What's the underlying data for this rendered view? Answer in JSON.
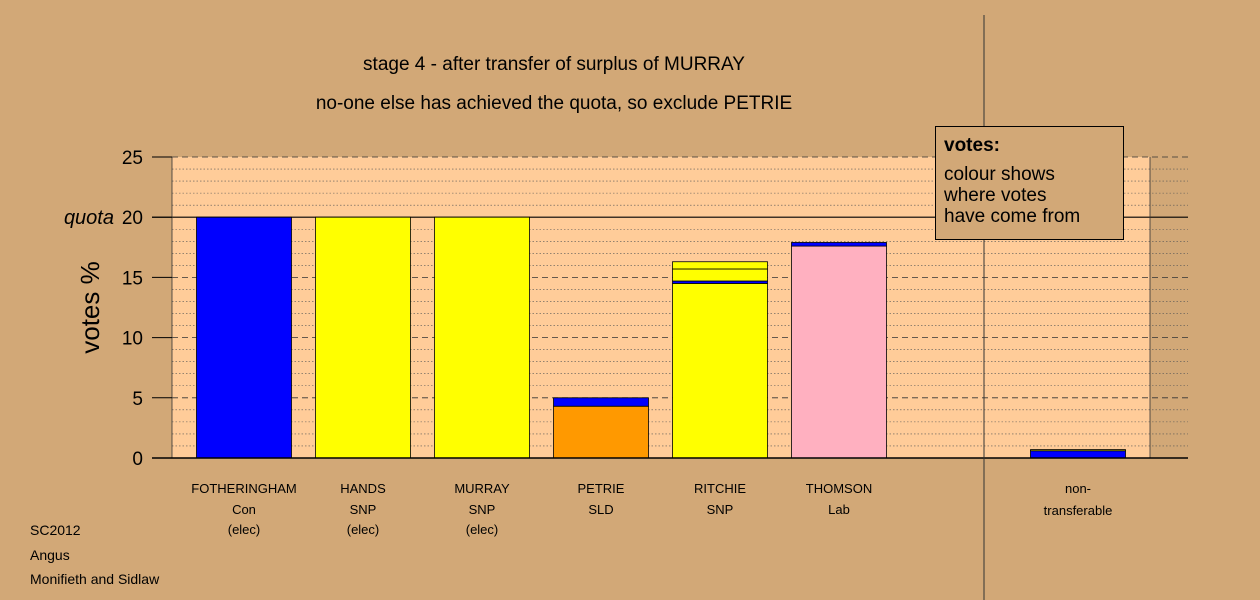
{
  "titles": {
    "line1": "stage 4 - after transfer of surplus of MURRAY",
    "line2": "no-one else has achieved the quota, so exclude PETRIE"
  },
  "legend": {
    "title": "votes:",
    "lines": [
      "colour shows",
      "where votes",
      "have come from"
    ]
  },
  "footer": [
    "SC2012",
    "Angus",
    "Monifieth and Sidlaw"
  ],
  "colors": {
    "background": "#d2a877",
    "plot_area": "#ffcc99",
    "Con": "#0000ff",
    "SNP": "#ffff00",
    "SLD": "#ff9900",
    "Lab": "#ffb0c0"
  },
  "chart_data": {
    "type": "bar",
    "stacked": true,
    "ylabel": "votes %",
    "ylim": [
      0,
      25
    ],
    "yticks": [
      0,
      5,
      10,
      15,
      20,
      25
    ],
    "quota": {
      "value": 20,
      "label": "quota"
    },
    "grid": "major dashed every 5, minor dotted every 1",
    "legend_position": "top-right",
    "candidates": [
      {
        "name": "FOTHERINGHAM",
        "party": "Con",
        "status": "(elec)",
        "segments": [
          {
            "from": "Con",
            "value": 20.0
          }
        ]
      },
      {
        "name": "HANDS",
        "party": "SNP",
        "status": "(elec)",
        "segments": [
          {
            "from": "SNP",
            "value": 20.0
          }
        ]
      },
      {
        "name": "MURRAY",
        "party": "SNP",
        "status": "(elec)",
        "segments": [
          {
            "from": "SNP",
            "value": 20.0
          }
        ]
      },
      {
        "name": "PETRIE",
        "party": "SLD",
        "status": "",
        "segments": [
          {
            "from": "SLD",
            "value": 4.3
          },
          {
            "from": "Con",
            "value": 0.7
          }
        ]
      },
      {
        "name": "RITCHIE",
        "party": "SNP",
        "status": "",
        "segments": [
          {
            "from": "SNP",
            "value": 14.5
          },
          {
            "from": "Con",
            "value": 0.2
          },
          {
            "from": "SNP",
            "value": 1.0
          },
          {
            "from": "SNP",
            "value": 0.6
          }
        ]
      },
      {
        "name": "THOMSON",
        "party": "Lab",
        "status": "",
        "segments": [
          {
            "from": "Lab",
            "value": 17.6
          },
          {
            "from": "Con",
            "value": 0.3
          }
        ]
      }
    ],
    "non_transferable": {
      "label_line1": "non-",
      "label_line2": "transferable",
      "segments": [
        {
          "from": "Con",
          "value": 0.6
        },
        {
          "from": "SNP",
          "value": 0.1
        }
      ]
    }
  }
}
